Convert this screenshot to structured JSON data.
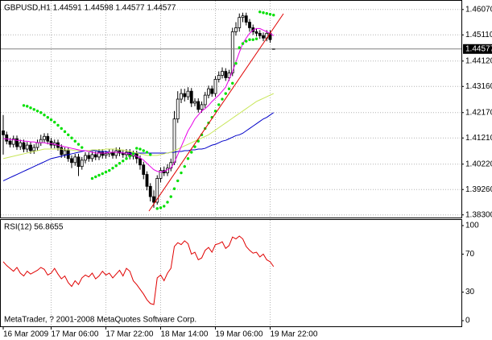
{
  "footer": "MetaTrader, ? 2001-2008 MetaQuotes Software Corp.",
  "chart_data": [
    {
      "type": "candlestick",
      "title": "GBPUSD,H1  1.44591 1.44598 1.44577 1.44577",
      "categories": [
        "16 Mar 2009",
        null,
        null,
        null,
        null,
        null,
        null,
        null,
        null,
        null,
        null,
        null,
        null,
        null,
        "17 Mar 06:00",
        null,
        null,
        null,
        null,
        null,
        null,
        null,
        null,
        null,
        null,
        null,
        null,
        null,
        null,
        null,
        "17 Mar 22:00",
        null,
        null,
        null,
        null,
        null,
        null,
        null,
        null,
        null,
        null,
        null,
        null,
        null,
        null,
        null,
        "18 Mar 14:00",
        null,
        null,
        null,
        null,
        null,
        null,
        null,
        null,
        null,
        null,
        null,
        null,
        null,
        null,
        null,
        "19 Mar 06:00",
        null,
        null,
        null,
        null,
        null,
        null,
        null,
        null,
        null,
        null,
        null,
        null,
        null,
        null,
        null,
        "19 Mar 22:00",
        null
      ],
      "open": [
        1.4148,
        1.4133,
        1.4109,
        1.4097,
        1.4118,
        1.4088,
        1.4103,
        1.4079,
        1.4094,
        1.4073,
        1.4085,
        1.4103,
        1.4115,
        1.4127,
        1.4109,
        1.4094,
        1.4103,
        1.4085,
        1.4058,
        1.4073,
        1.4043,
        1.4028,
        1.4049,
        1.4013,
        1.4037,
        1.4055,
        1.4043,
        1.4058,
        1.4049,
        1.4067,
        1.4055,
        1.4061,
        1.4067,
        1.4055,
        1.4073,
        1.4064,
        1.4058,
        1.4067,
        1.4052,
        1.4061,
        1.4043,
        1.4019,
        1.3983,
        1.3938,
        1.3899,
        1.3878,
        1.3968,
        1.3998,
        1.3989,
        1.4007,
        1.4028,
        1.4193,
        1.4268,
        1.4289,
        1.4277,
        1.4298,
        1.4253,
        1.4259,
        1.4229,
        1.4247,
        1.4283,
        1.4307,
        1.4289,
        1.4343,
        1.4358,
        1.4373,
        1.4349,
        1.4367,
        1.4523,
        1.4538,
        1.4577,
        1.4583,
        1.4559,
        1.4538,
        1.4523,
        1.4517,
        1.4508,
        1.4499,
        1.4517,
        1.44591
      ],
      "high": [
        1.4208,
        1.4145,
        1.4121,
        1.413,
        1.413,
        1.4115,
        1.4115,
        1.4106,
        1.4106,
        1.4097,
        1.4115,
        1.4133,
        1.4139,
        1.4139,
        1.4121,
        1.4115,
        1.4115,
        1.4097,
        1.4085,
        1.4085,
        1.4055,
        1.4061,
        1.4061,
        1.4049,
        1.4067,
        1.4067,
        1.407,
        1.407,
        1.4079,
        1.4079,
        1.4073,
        1.4079,
        1.4079,
        1.4085,
        1.4085,
        1.4076,
        1.4079,
        1.4079,
        1.4073,
        1.4073,
        1.4055,
        1.4031,
        1.3995,
        1.395,
        1.3923,
        1.398,
        1.401,
        1.4013,
        1.4022,
        1.4043,
        1.4223,
        1.4298,
        1.4307,
        1.4307,
        1.4313,
        1.431,
        1.4271,
        1.4271,
        1.4259,
        1.4295,
        1.4319,
        1.4319,
        1.4355,
        1.4373,
        1.4388,
        1.4385,
        1.4379,
        1.4538,
        1.4559,
        1.4592,
        1.4595,
        1.4595,
        1.4571,
        1.455,
        1.4535,
        1.4529,
        1.452,
        1.4529,
        1.4529,
        1.44598
      ],
      "low": [
        1.4058,
        1.4097,
        1.4085,
        1.4085,
        1.4076,
        1.4076,
        1.4067,
        1.4067,
        1.4061,
        1.4061,
        1.4073,
        1.4091,
        1.4103,
        1.4097,
        1.4082,
        1.4082,
        1.4073,
        1.4046,
        1.4046,
        1.4031,
        1.4007,
        1.4016,
        1.3977,
        1.4001,
        1.4025,
        1.4031,
        1.4031,
        1.4037,
        1.4037,
        1.4043,
        1.4043,
        1.4049,
        1.4043,
        1.4043,
        1.4052,
        1.4046,
        1.4046,
        1.404,
        1.404,
        1.4025,
        1.4001,
        1.3965,
        1.3923,
        1.3881,
        1.3857,
        1.3869,
        1.3953,
        1.3977,
        1.3977,
        1.3995,
        1.4019,
        1.4178,
        1.4253,
        1.4259,
        1.4265,
        1.4238,
        1.4241,
        1.4217,
        1.4217,
        1.4235,
        1.4271,
        1.4277,
        1.4277,
        1.4331,
        1.4346,
        1.4337,
        1.4337,
        1.4355,
        1.4508,
        1.4523,
        1.4559,
        1.4547,
        1.4523,
        1.4511,
        1.4505,
        1.4496,
        1.4487,
        1.4487,
        1.4481,
        1.44577
      ],
      "close": [
        1.4133,
        1.4109,
        1.4097,
        1.4118,
        1.4088,
        1.4103,
        1.4079,
        1.4094,
        1.4073,
        1.4085,
        1.4103,
        1.4115,
        1.4127,
        1.4109,
        1.4094,
        1.4103,
        1.4085,
        1.4058,
        1.4073,
        1.4043,
        1.4028,
        1.4049,
        1.4013,
        1.4037,
        1.4055,
        1.4043,
        1.4058,
        1.4049,
        1.4067,
        1.4055,
        1.4061,
        1.4067,
        1.4055,
        1.4073,
        1.4064,
        1.4058,
        1.4067,
        1.4052,
        1.4061,
        1.4043,
        1.4019,
        1.3983,
        1.3938,
        1.3899,
        1.3878,
        1.3968,
        1.3998,
        1.3989,
        1.4007,
        1.4028,
        1.4193,
        1.4268,
        1.4289,
        1.4277,
        1.4298,
        1.4253,
        1.4259,
        1.4229,
        1.4247,
        1.4283,
        1.4307,
        1.4289,
        1.4343,
        1.4358,
        1.4373,
        1.4349,
        1.4367,
        1.4523,
        1.4538,
        1.4577,
        1.4583,
        1.4559,
        1.4538,
        1.4523,
        1.4517,
        1.4508,
        1.4499,
        1.4517,
        1.4493,
        1.44577
      ],
      "up_color": "#ffffff",
      "down_color": "#000000",
      "wick_color": "#000000",
      "overlays": [
        {
          "type": "line",
          "color": "#0000c8",
          "values": [
            1.3959,
            1.3965,
            1.3971,
            1.3977,
            1.3983,
            1.3989,
            1.3995,
            1.4001,
            1.4007,
            1.4013,
            1.4019,
            1.4025,
            1.4031,
            1.4037,
            1.4043,
            1.4046,
            1.4049,
            1.4052,
            1.4055,
            1.4058,
            1.4061,
            1.4064,
            1.4067,
            1.407,
            1.4073,
            1.4073,
            1.4073,
            1.4073,
            1.407,
            1.407,
            1.407,
            1.4067,
            1.4067,
            1.4067,
            1.4067,
            1.4064,
            1.4064,
            1.4064,
            1.4064,
            1.4064,
            1.4064,
            1.4064,
            1.4064,
            1.4064,
            1.4064,
            1.4064,
            1.4064,
            1.4064,
            1.4064,
            1.4067,
            1.4067,
            1.407,
            1.407,
            1.4073,
            1.4073,
            1.4076,
            1.4076,
            1.4079,
            1.4079,
            1.4082,
            1.4088,
            1.4094,
            1.4097,
            1.4103,
            1.4109,
            1.4112,
            1.4118,
            1.4124,
            1.413,
            1.4133,
            1.4139,
            1.4148,
            1.4157,
            1.4166,
            1.4175,
            1.4184,
            1.4193,
            1.4199,
            1.4208,
            1.4217
          ]
        },
        {
          "type": "line",
          "color": "#c8e65a",
          "values": [
            1.4043,
            1.4046,
            1.4049,
            1.4052,
            1.4055,
            1.4058,
            1.4061,
            1.4064,
            1.4067,
            1.407,
            1.4073,
            1.4076,
            1.4079,
            1.4079,
            1.4079,
            1.4079,
            1.4079,
            1.4079,
            1.4076,
            1.4076,
            1.4076,
            1.4073,
            1.4073,
            1.4073,
            1.4073,
            1.4073,
            1.4076,
            1.4076,
            1.4076,
            1.4076,
            1.4079,
            1.4079,
            1.4079,
            1.4079,
            1.4076,
            1.4076,
            1.4073,
            1.407,
            1.4067,
            1.4064,
            1.4061,
            1.4058,
            1.4055,
            1.4055,
            1.4055,
            1.4055,
            1.4058,
            1.4061,
            1.4064,
            1.4067,
            1.4073,
            1.4079,
            1.4085,
            1.4091,
            1.4097,
            1.4103,
            1.4109,
            1.4115,
            1.4121,
            1.4127,
            1.4133,
            1.4142,
            1.4151,
            1.416,
            1.4169,
            1.4178,
            1.4187,
            1.4196,
            1.4205,
            1.4214,
            1.4223,
            1.4232,
            1.4241,
            1.425,
            1.4259,
            1.4265,
            1.4271,
            1.4277,
            1.4283,
            1.4289
          ]
        },
        {
          "type": "line",
          "color": "#e800e8",
          "values": [
            1.4118,
            1.4118,
            1.4115,
            1.4115,
            1.4112,
            1.4112,
            1.4109,
            1.4109,
            1.4106,
            1.4106,
            1.4103,
            1.4103,
            1.4103,
            1.41,
            1.41,
            1.4097,
            1.4094,
            1.4091,
            1.4088,
            1.4085,
            1.4082,
            1.4079,
            1.4076,
            1.4073,
            1.4073,
            1.407,
            1.4067,
            1.4064,
            1.4064,
            1.4064,
            1.4064,
            1.4067,
            1.4067,
            1.4067,
            1.4067,
            1.4064,
            1.4064,
            1.4061,
            1.4058,
            1.4052,
            1.4046,
            1.4037,
            1.4025,
            1.4013,
            1.4001,
            1.3995,
            1.3992,
            1.3995,
            1.4001,
            1.4007,
            1.4028,
            1.4058,
            1.4088,
            1.4118,
            1.4148,
            1.4169,
            1.4193,
            1.4208,
            1.4223,
            1.4232,
            1.4244,
            1.4259,
            1.4271,
            1.4283,
            1.4298,
            1.4313,
            1.4343,
            1.4373,
            1.4409,
            1.4445,
            1.4478,
            1.4499,
            1.4517,
            1.4529,
            1.4535,
            1.4535,
            1.4529,
            1.4523,
            1.4517,
            1.4508
          ]
        },
        {
          "type": "dots",
          "color": "#00e000",
          "values": [
            null,
            null,
            null,
            null,
            null,
            null,
            1.4244,
            1.4241,
            1.4235,
            1.4229,
            1.4223,
            1.4217,
            1.4208,
            1.4199,
            1.419,
            1.4181,
            1.4169,
            1.4157,
            1.4145,
            1.4133,
            1.4121,
            1.4109,
            1.4097,
            1.4085,
            null,
            null,
            1.3968,
            1.3974,
            1.398,
            1.3986,
            1.3992,
            1.3998,
            1.4007,
            1.4016,
            1.4025,
            1.4034,
            1.4043,
            1.4052,
            1.4061,
            1.4082,
            1.4079,
            1.4073,
            1.4067,
            1.4058,
            null,
            1.3854,
            1.3857,
            1.3863,
            1.3878,
            1.3899,
            1.3929,
            1.3959,
            1.3989,
            1.4013,
            1.4043,
            1.4067,
            1.4088,
            1.4109,
            1.4133,
            1.4157,
            1.4178,
            1.4199,
            1.4223,
            1.4247,
            1.4268,
            1.4289,
            1.4307,
            1.4328,
            1.4403,
            1.4463,
            1.4478,
            1.4487,
            1.4493,
            1.4493,
            1.4496,
            1.4598,
            1.4595,
            1.4592,
            1.4589,
            1.4586
          ]
        }
      ],
      "ylim": [
        1.382,
        1.4643
      ],
      "yticks": [
        {
          "value": 1.383,
          "label": "1.38300"
        },
        {
          "value": 1.3926,
          "label": "1.39260"
        },
        {
          "value": 1.4022,
          "label": "1.40220"
        },
        {
          "value": 1.4121,
          "label": "1.41210"
        },
        {
          "value": 1.4217,
          "label": "1.42170"
        },
        {
          "value": 1.4316,
          "label": "1.43160"
        },
        {
          "value": 1.4412,
          "label": "1.44120"
        },
        {
          "value": 1.4511,
          "label": "1.45110"
        },
        {
          "value": 1.4607,
          "label": "1.46070"
        }
      ],
      "grid": true
    },
    {
      "type": "line",
      "title": "RSI(12) 56.8655",
      "color": "#e00000",
      "values": [
        62,
        58,
        55,
        52,
        56,
        50,
        47,
        52,
        49,
        51,
        53,
        56,
        54,
        48,
        50,
        55,
        49,
        44,
        47,
        40,
        36,
        42,
        38,
        45,
        48,
        46,
        50,
        44,
        47,
        52,
        48,
        50,
        45,
        49,
        53,
        47,
        55,
        52,
        42,
        38,
        33,
        28,
        22,
        18,
        17,
        45,
        48,
        42,
        50,
        55,
        78,
        82,
        80,
        84,
        81,
        70,
        72,
        64,
        66,
        74,
        77,
        72,
        80,
        81,
        83,
        76,
        79,
        88,
        86,
        89,
        86,
        78,
        74,
        71,
        72,
        67,
        70,
        64,
        62,
        56.8655
      ],
      "ylim": [
        0,
        100
      ],
      "yticks": [
        0,
        30,
        70,
        100
      ]
    }
  ]
}
